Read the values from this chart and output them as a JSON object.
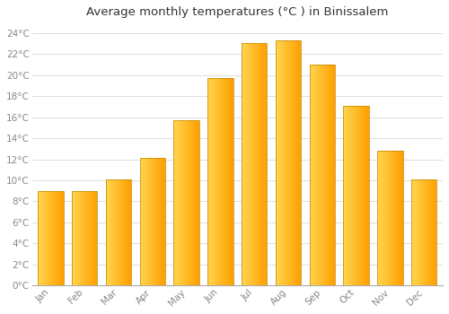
{
  "title": "Average monthly temperatures (°C ) in Binissalem",
  "months": [
    "Jan",
    "Feb",
    "Mar",
    "Apr",
    "May",
    "Jun",
    "Jul",
    "Aug",
    "Sep",
    "Oct",
    "Nov",
    "Dec"
  ],
  "temperatures": [
    9.0,
    9.0,
    10.1,
    12.1,
    15.7,
    19.7,
    23.1,
    23.3,
    21.0,
    17.1,
    12.8,
    10.1
  ],
  "bar_color_left": "#FFD54F",
  "bar_color_right": "#FFA000",
  "bar_edge_color": "#BF8600",
  "ylim": [
    0,
    25
  ],
  "yticks": [
    0,
    2,
    4,
    6,
    8,
    10,
    12,
    14,
    16,
    18,
    20,
    22,
    24
  ],
  "ytick_labels": [
    "0°C",
    "2°C",
    "4°C",
    "6°C",
    "8°C",
    "10°C",
    "12°C",
    "14°C",
    "16°C",
    "18°C",
    "20°C",
    "22°C",
    "24°C"
  ],
  "background_color": "#FFFFFF",
  "plot_bg_color": "#FFFFFF",
  "grid_color": "#DDDDDD",
  "title_fontsize": 9.5,
  "tick_fontsize": 7.5,
  "bar_width": 0.75,
  "tick_color": "#888888",
  "spine_color": "#AAAAAA"
}
